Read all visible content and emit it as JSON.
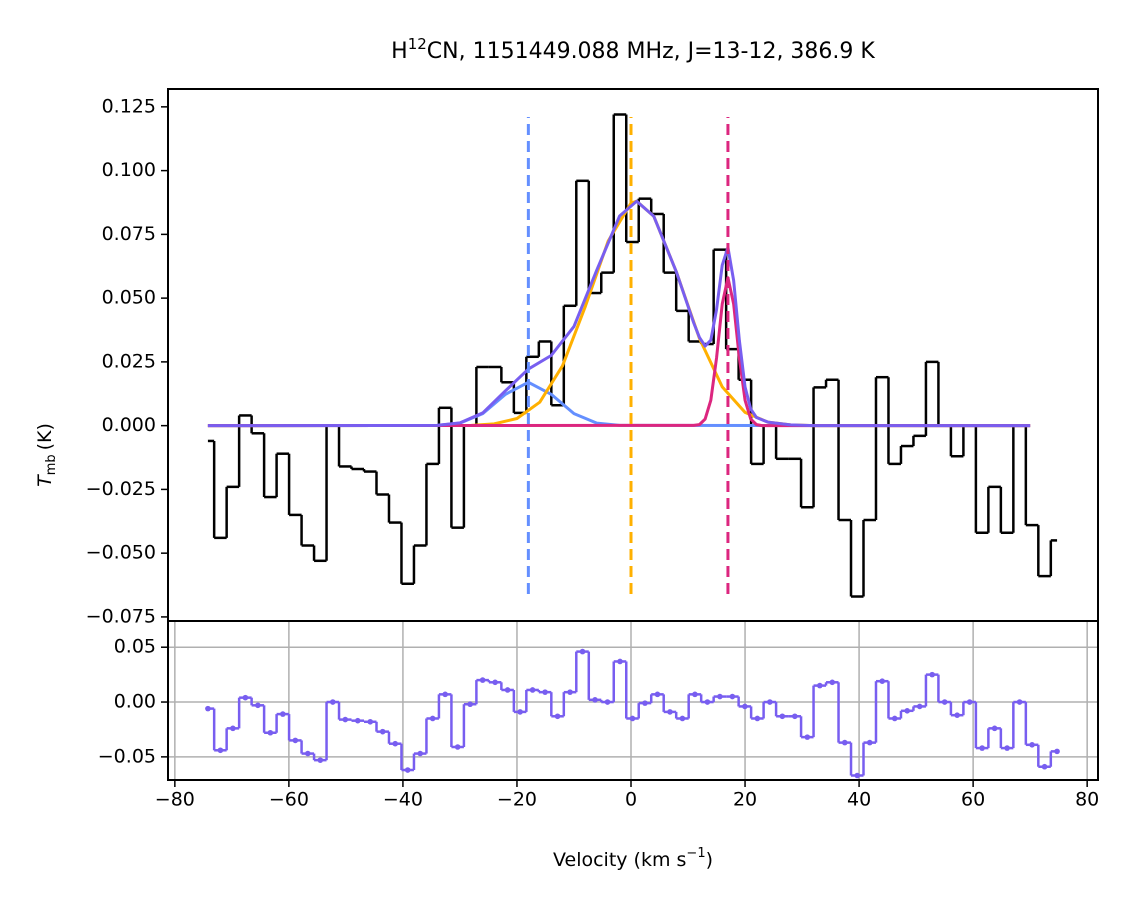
{
  "chart_data": [
    {
      "type": "step",
      "title": {
        "main": "H",
        "sup": "12",
        "rest": "CN, 1151449.088 MHz, J=13-12, 386.9 K"
      },
      "ylabel": {
        "symbol": "T",
        "sub": "mb",
        "unit": "(K)"
      },
      "xlim": [
        -81.2,
        81.9
      ],
      "ylim": [
        -0.0766,
        0.132
      ],
      "yticks": [
        {
          "value": -0.075,
          "label": "−0.075"
        },
        {
          "value": -0.05,
          "label": "−0.050"
        },
        {
          "value": -0.025,
          "label": "−0.025"
        },
        {
          "value": 0,
          "label": "0.000"
        },
        0.025,
        {
          "value": 0.05,
          "label": "0.050"
        },
        0.075,
        {
          "value": 0.1,
          "label": "0.100"
        },
        0.125
      ],
      "color": "#000000",
      "x": [
        -74.2,
        -72.01,
        -69.82,
        -67.63,
        -65.44,
        -63.25,
        -61.06,
        -58.87,
        -56.68,
        -54.49,
        -52.3,
        -50.11,
        -47.92,
        -45.73,
        -43.54,
        -41.35,
        -39.16,
        -36.97,
        -34.78,
        -32.59,
        -30.4,
        -28.21,
        -26.02,
        -23.83,
        -21.64,
        -19.45,
        -17.26,
        -15.07,
        -12.88,
        -10.69,
        -8.5,
        -6.31,
        -4.12,
        -1.93,
        0.26,
        2.45,
        4.64,
        6.83,
        9.02,
        11.21,
        13.4,
        15.59,
        17.78,
        19.97,
        22.16,
        24.35,
        26.54,
        28.73,
        30.92,
        33.11,
        35.3,
        37.49,
        39.68,
        41.87,
        44.06,
        46.25,
        48.44,
        50.63,
        52.82,
        55.01,
        57.2,
        59.39,
        61.58,
        63.77,
        65.96,
        68.15,
        70.34,
        72.53,
        74.72
      ],
      "values": [
        -0.006,
        -0.044,
        -0.024,
        0.004,
        -0.003,
        -0.028,
        -0.011,
        -0.035,
        -0.047,
        -0.053,
        0.0,
        -0.016,
        -0.017,
        -0.018,
        -0.027,
        -0.038,
        -0.062,
        -0.047,
        -0.015,
        0.007,
        -0.04,
        0.0,
        0.023,
        0.023,
        0.017,
        0.005,
        0.027,
        0.033,
        0.008,
        0.047,
        0.096,
        0.052,
        0.06,
        0.122,
        0.072,
        0.089,
        0.083,
        0.06,
        0.045,
        0.033,
        0.032,
        0.069,
        0.03,
        0.018,
        -0.015,
        0.0,
        -0.013,
        -0.013,
        -0.032,
        0.015,
        0.018,
        -0.037,
        -0.067,
        -0.037,
        0.019,
        -0.015,
        -0.008,
        -0.004,
        0.025,
        0.0,
        -0.012,
        0.0,
        -0.042,
        -0.024,
        -0.042,
        0.0,
        -0.039,
        -0.059,
        -0.045
      ],
      "series": [
        {
          "color": "#648fff",
          "x": [
            -74.2,
            -34,
            -30,
            -26,
            -22,
            -18,
            -14,
            -10,
            -6,
            -2,
            70
          ],
          "values": [
            0,
            0.0001,
            0.001,
            0.0047,
            0.0123,
            0.017,
            0.0123,
            0.0047,
            0.001,
            0.0001,
            0
          ]
        },
        {
          "color": "#ffb000",
          "x": [
            -74.2,
            -28,
            -24,
            -20,
            -16,
            -12,
            -8,
            -4,
            0,
            1,
            4,
            8,
            12,
            16,
            20,
            24,
            28,
            32,
            70
          ],
          "values": [
            0,
            0.0001,
            0.0007,
            0.0028,
            0.0092,
            0.0235,
            0.0468,
            0.0724,
            0.0873,
            0.088,
            0.0821,
            0.06,
            0.0342,
            0.0152,
            0.0052,
            0.0014,
            0.0003,
            0,
            0
          ]
        },
        {
          "color": "#dc267f",
          "x": [
            -74.2,
            11,
            12,
            13,
            14,
            15,
            16,
            17,
            18,
            19,
            20,
            21,
            22,
            23,
            70
          ],
          "values": [
            0,
            0.0001,
            0.0004,
            0.0026,
            0.01,
            0.0265,
            0.0477,
            0.058,
            0.0477,
            0.0265,
            0.01,
            0.0026,
            0.0004,
            0,
            0
          ]
        },
        {
          "color": "#785ef0",
          "x": [
            -74.2,
            -34,
            -30,
            -26,
            -22,
            -18,
            -14,
            -10,
            -6,
            -2,
            1,
            4,
            8,
            11,
            12,
            13,
            14,
            15,
            16,
            17,
            18,
            19,
            20,
            21,
            22,
            24,
            28,
            32,
            70
          ],
          "values": [
            0,
            0.0001,
            0.0011,
            0.005,
            0.0137,
            0.0222,
            0.0275,
            0.0389,
            0.061,
            0.0822,
            0.088,
            0.0821,
            0.06,
            0.0403,
            0.0346,
            0.0312,
            0.0335,
            0.0455,
            0.0629,
            0.0699,
            0.0569,
            0.0335,
            0.0152,
            0.0065,
            0.0032,
            0.0014,
            0.0003,
            0,
            0
          ]
        }
      ],
      "vlines": {
        "x": [
          -18,
          0,
          17
        ],
        "colors": [
          "#648fff",
          "#ffb000",
          "#dc267f"
        ],
        "ylim": [
          -0.066,
          0.121
        ]
      }
    },
    {
      "type": "step-dots",
      "xlabel": {
        "main": "Velocity (km s",
        "sup": "−1",
        "end": ")"
      },
      "xlim": [
        -81.2,
        81.9
      ],
      "ylim": [
        -0.0711,
        0.0739
      ],
      "xticks": [
        {
          "value": -80,
          "label": "−80"
        },
        {
          "value": -60,
          "label": "−60"
        },
        {
          "value": -40,
          "label": "−40"
        },
        {
          "value": -20,
          "label": "−20"
        },
        0,
        20,
        40,
        60,
        80
      ],
      "yticks": [
        {
          "value": -0.05,
          "label": "−0.05"
        },
        {
          "value": 0,
          "label": "0.00"
        },
        0.05
      ],
      "grid": true,
      "color": "#785ef0",
      "x": [
        -74.2,
        -72.01,
        -69.82,
        -67.63,
        -65.44,
        -63.25,
        -61.06,
        -58.87,
        -56.68,
        -54.49,
        -52.3,
        -50.11,
        -47.92,
        -45.73,
        -43.54,
        -41.35,
        -39.16,
        -36.97,
        -34.78,
        -32.59,
        -30.4,
        -28.21,
        -26.02,
        -23.83,
        -21.64,
        -19.45,
        -17.26,
        -15.07,
        -12.88,
        -10.69,
        -8.5,
        -6.31,
        -4.12,
        -1.93,
        0.26,
        2.45,
        4.64,
        6.83,
        9.02,
        11.21,
        13.4,
        15.59,
        17.78,
        19.97,
        22.16,
        24.35,
        26.54,
        28.73,
        30.92,
        33.11,
        35.3,
        37.49,
        39.68,
        41.87,
        44.06,
        46.25,
        48.44,
        50.63,
        52.82,
        55.01,
        57.2,
        59.39,
        61.58,
        63.77,
        65.96,
        68.15,
        70.34,
        72.53,
        74.72
      ],
      "values": [
        -0.006,
        -0.044,
        -0.024,
        0.004,
        -0.003,
        -0.028,
        -0.011,
        -0.035,
        -0.047,
        -0.053,
        0.0,
        -0.016,
        -0.017,
        -0.018,
        -0.027,
        -0.038,
        -0.062,
        -0.047,
        -0.015,
        0.007,
        -0.041,
        -0.002,
        0.02,
        0.018,
        0.011,
        -0.009,
        0.011,
        0.009,
        -0.013,
        0.009,
        0.046,
        0.002,
        0.0,
        0.037,
        -0.015,
        -0.001,
        0.007,
        -0.009,
        -0.015,
        0.007,
        0.0,
        0.005,
        0.005,
        -0.004,
        -0.015,
        0.0,
        -0.013,
        -0.013,
        -0.032,
        0.015,
        0.018,
        -0.037,
        -0.067,
        -0.037,
        0.019,
        -0.015,
        -0.008,
        -0.004,
        0.025,
        0.0,
        -0.012,
        0.0,
        -0.042,
        -0.024,
        -0.042,
        0.0,
        -0.039,
        -0.059,
        -0.045
      ]
    }
  ]
}
